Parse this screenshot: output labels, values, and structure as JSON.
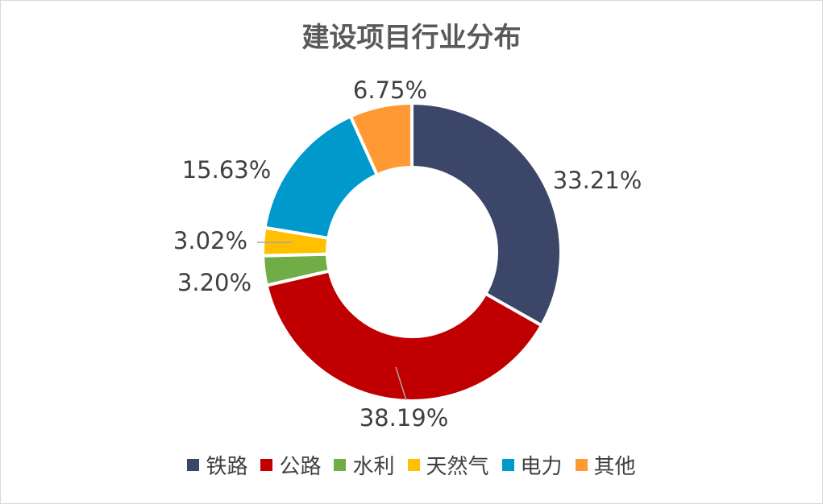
{
  "chart_data": {
    "type": "pie",
    "variant": "donut",
    "title": "建设项目行业分布",
    "categories": [
      "铁路",
      "公路",
      "水利",
      "天然气",
      "电力",
      "其他"
    ],
    "values": [
      33.21,
      38.19,
      3.2,
      3.02,
      15.63,
      6.75
    ],
    "labels": [
      "33.21%",
      "38.19%",
      "3.20%",
      "3.02%",
      "15.63%",
      "6.75%"
    ],
    "colors": [
      "#3C4668",
      "#C00000",
      "#70AD47",
      "#FFC000",
      "#0099CC",
      "#FF9933"
    ],
    "legend_position": "bottom"
  }
}
